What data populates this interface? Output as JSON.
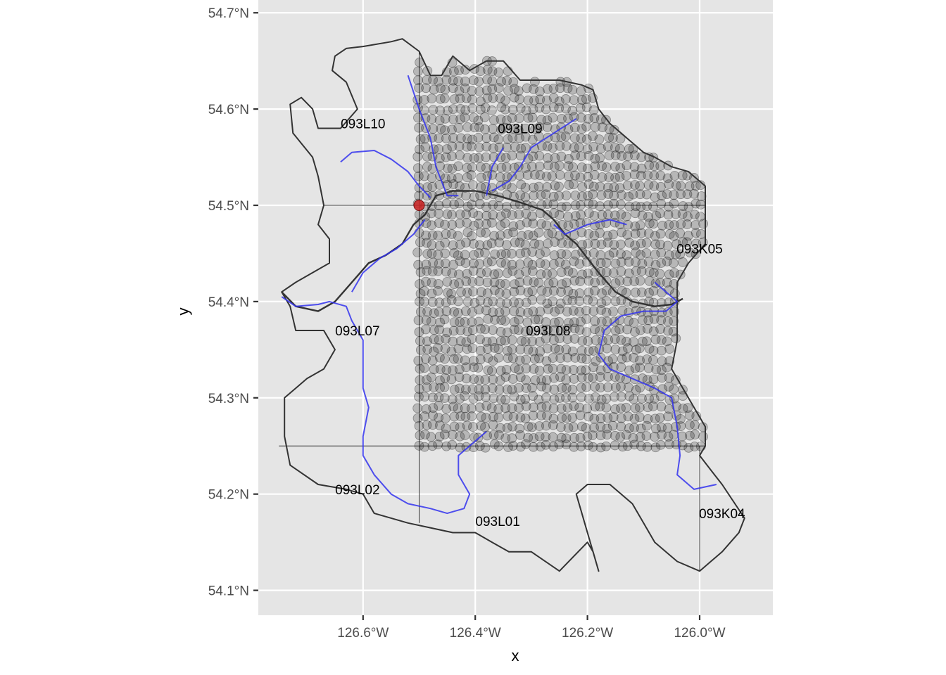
{
  "plot": {
    "xlabel": "x",
    "ylabel": "y",
    "xlim": [
      -126.78,
      -125.87
    ],
    "ylim": [
      54.075,
      54.71
    ],
    "x_ticks": [
      {
        "value": -126.6,
        "label": "126.6°W"
      },
      {
        "value": -126.4,
        "label": "126.4°W"
      },
      {
        "value": -126.2,
        "label": "126.2°W"
      },
      {
        "value": -126.0,
        "label": "126.0°W"
      }
    ],
    "y_ticks": [
      {
        "value": 54.1,
        "label": "54.1°N"
      },
      {
        "value": 54.2,
        "label": "54.2°N"
      },
      {
        "value": 54.3,
        "label": "54.3°N"
      },
      {
        "value": 54.4,
        "label": "54.4°N"
      },
      {
        "value": 54.5,
        "label": "54.5°N"
      },
      {
        "value": 54.6,
        "label": "54.6°N"
      },
      {
        "value": 54.7,
        "label": "54.7°N"
      }
    ],
    "grid": true,
    "colors": {
      "panel_bg": "#e5e5e5",
      "grid": "#ffffff",
      "boundary": "#333333",
      "tile_lines": "#333333",
      "river": "#3333ee",
      "points": "#000000",
      "marker": "#cc2222"
    }
  },
  "map_labels": [
    {
      "text": "093L10",
      "lon": -126.6,
      "lat": 54.585
    },
    {
      "text": "093L09",
      "lon": -126.32,
      "lat": 54.58
    },
    {
      "text": "093K05",
      "lon": -126.0,
      "lat": 54.455
    },
    {
      "text": "093L07",
      "lon": -126.61,
      "lat": 54.37
    },
    {
      "text": "093L08",
      "lon": -126.27,
      "lat": 54.37
    },
    {
      "text": "093L02",
      "lon": -126.61,
      "lat": 54.205
    },
    {
      "text": "093L01",
      "lon": -126.36,
      "lat": 54.172
    },
    {
      "text": "093K04",
      "lon": -125.96,
      "lat": 54.18
    }
  ],
  "tile_grid": {
    "horizontal": [
      {
        "lat": 54.5,
        "lon_from": -126.67,
        "lon_to": -125.99
      },
      {
        "lat": 54.25,
        "lon_from": -126.75,
        "lon_to": -125.99
      }
    ],
    "vertical": [
      {
        "lon": -126.5,
        "lat_from": 54.17,
        "lat_to": 54.66
      },
      {
        "lon": -126.0,
        "lat_from": 54.12,
        "lat_to": 54.25
      }
    ]
  },
  "marker": {
    "lon": -126.5,
    "lat": 54.5
  },
  "points_region": {
    "lon_range": [
      -126.5,
      -125.99
    ],
    "lat_range": [
      54.25,
      54.655
    ],
    "lon_step": 0.012,
    "lat_step": 0.01
  },
  "watershed_boundary": [
    [
      -126.5,
      54.66
    ],
    [
      -126.53,
      54.673
    ],
    [
      -126.55,
      54.67
    ],
    [
      -126.6,
      54.665
    ],
    [
      -126.63,
      54.663
    ],
    [
      -126.65,
      54.655
    ],
    [
      -126.655,
      54.64
    ],
    [
      -126.63,
      54.628
    ],
    [
      -126.61,
      54.6
    ],
    [
      -126.64,
      54.58
    ],
    [
      -126.68,
      54.58
    ],
    [
      -126.69,
      54.6
    ],
    [
      -126.71,
      54.612
    ],
    [
      -126.73,
      54.605
    ],
    [
      -126.725,
      54.575
    ],
    [
      -126.69,
      54.55
    ],
    [
      -126.68,
      54.53
    ],
    [
      -126.67,
      54.5
    ],
    [
      -126.68,
      54.48
    ],
    [
      -126.66,
      54.465
    ],
    [
      -126.66,
      54.44
    ],
    [
      -126.72,
      54.42
    ],
    [
      -126.745,
      54.41
    ],
    [
      -126.73,
      54.395
    ],
    [
      -126.72,
      54.37
    ],
    [
      -126.67,
      54.37
    ],
    [
      -126.65,
      54.35
    ],
    [
      -126.67,
      54.33
    ],
    [
      -126.7,
      54.32
    ],
    [
      -126.72,
      54.31
    ],
    [
      -126.74,
      54.3
    ],
    [
      -126.74,
      54.26
    ],
    [
      -126.73,
      54.23
    ],
    [
      -126.68,
      54.21
    ],
    [
      -126.63,
      54.205
    ],
    [
      -126.6,
      54.2
    ],
    [
      -126.58,
      54.18
    ],
    [
      -126.55,
      54.175
    ],
    [
      -126.52,
      54.17
    ],
    [
      -126.48,
      54.165
    ],
    [
      -126.44,
      54.16
    ],
    [
      -126.4,
      54.16
    ],
    [
      -126.37,
      54.15
    ],
    [
      -126.34,
      54.14
    ],
    [
      -126.3,
      54.14
    ],
    [
      -126.25,
      54.12
    ],
    [
      -126.2,
      54.15
    ],
    [
      -126.19,
      54.14
    ],
    [
      -126.18,
      54.12
    ],
    [
      -126.22,
      54.2
    ],
    [
      -126.2,
      54.21
    ],
    [
      -126.16,
      54.21
    ],
    [
      -126.12,
      54.19
    ],
    [
      -126.1,
      54.17
    ],
    [
      -126.08,
      54.15
    ],
    [
      -126.04,
      54.13
    ],
    [
      -126.0,
      54.12
    ],
    [
      -125.98,
      54.13
    ],
    [
      -125.96,
      54.14
    ],
    [
      -125.93,
      54.16
    ],
    [
      -125.92,
      54.175
    ],
    [
      -125.96,
      54.21
    ],
    [
      -125.98,
      54.225
    ],
    [
      -126.0,
      54.24
    ],
    [
      -125.99,
      54.25
    ],
    [
      -125.99,
      54.27
    ],
    [
      -126.01,
      54.29
    ],
    [
      -126.03,
      54.31
    ],
    [
      -126.05,
      54.33
    ],
    [
      -126.04,
      54.36
    ],
    [
      -126.04,
      54.39
    ],
    [
      -126.04,
      54.42
    ],
    [
      -126.02,
      54.44
    ],
    [
      -125.99,
      54.46
    ],
    [
      -125.99,
      54.5
    ],
    [
      -125.99,
      54.52
    ],
    [
      -126.02,
      54.535
    ],
    [
      -126.05,
      54.54
    ],
    [
      -126.08,
      54.55
    ],
    [
      -126.1,
      54.555
    ],
    [
      -126.13,
      54.57
    ],
    [
      -126.16,
      54.585
    ],
    [
      -126.18,
      54.6
    ],
    [
      -126.19,
      54.62
    ],
    [
      -126.21,
      54.625
    ],
    [
      -126.25,
      54.63
    ],
    [
      -126.28,
      54.63
    ],
    [
      -126.32,
      54.63
    ],
    [
      -126.35,
      54.65
    ],
    [
      -126.38,
      54.65
    ],
    [
      -126.41,
      54.64
    ],
    [
      -126.44,
      54.655
    ],
    [
      -126.46,
      54.635
    ],
    [
      -126.48,
      54.635
    ],
    [
      -126.5,
      54.66
    ]
  ],
  "inner_boundary": [
    [
      -126.745,
      54.41
    ],
    [
      -126.72,
      54.395
    ],
    [
      -126.68,
      54.39
    ],
    [
      -126.65,
      54.4
    ],
    [
      -126.62,
      54.42
    ],
    [
      -126.59,
      54.44
    ],
    [
      -126.56,
      54.448
    ],
    [
      -126.53,
      54.46
    ],
    [
      -126.51,
      54.48
    ],
    [
      -126.49,
      54.49
    ],
    [
      -126.47,
      54.51
    ],
    [
      -126.44,
      54.515
    ],
    [
      -126.4,
      54.515
    ],
    [
      -126.36,
      54.51
    ],
    [
      -126.32,
      54.503
    ],
    [
      -126.28,
      54.495
    ],
    [
      -126.26,
      54.485
    ],
    [
      -126.24,
      54.47
    ],
    [
      -126.22,
      54.46
    ],
    [
      -126.2,
      54.445
    ],
    [
      -126.18,
      54.43
    ],
    [
      -126.15,
      54.41
    ],
    [
      -126.12,
      54.4
    ],
    [
      -126.08,
      54.395
    ],
    [
      -126.05,
      54.397
    ],
    [
      -126.03,
      54.403
    ]
  ],
  "rivers": [
    [
      [
        -126.52,
        54.635
      ],
      [
        -126.5,
        54.6
      ],
      [
        -126.48,
        54.57
      ],
      [
        -126.47,
        54.54
      ],
      [
        -126.45,
        54.51
      ],
      [
        -126.43,
        54.51
      ]
    ],
    [
      [
        -126.64,
        54.545
      ],
      [
        -126.62,
        54.555
      ],
      [
        -126.58,
        54.557
      ],
      [
        -126.55,
        54.548
      ],
      [
        -126.52,
        54.535
      ],
      [
        -126.5,
        54.52
      ],
      [
        -126.48,
        54.508
      ]
    ],
    [
      [
        -126.22,
        54.59
      ],
      [
        -126.26,
        54.575
      ],
      [
        -126.3,
        54.56
      ],
      [
        -126.32,
        54.54
      ],
      [
        -126.34,
        54.525
      ],
      [
        -126.37,
        54.515
      ]
    ],
    [
      [
        -126.35,
        54.56
      ],
      [
        -126.37,
        54.54
      ],
      [
        -126.38,
        54.51
      ]
    ],
    [
      [
        -126.26,
        54.48
      ],
      [
        -126.24,
        54.47
      ],
      [
        -126.2,
        54.48
      ],
      [
        -126.16,
        54.485
      ],
      [
        -126.13,
        54.48
      ]
    ],
    [
      [
        -126.08,
        54.42
      ],
      [
        -126.06,
        54.41
      ],
      [
        -126.04,
        54.4
      ],
      [
        -126.06,
        54.39
      ],
      [
        -126.1,
        54.39
      ],
      [
        -126.14,
        54.385
      ],
      [
        -126.17,
        54.37
      ],
      [
        -126.18,
        54.345
      ],
      [
        -126.16,
        54.33
      ],
      [
        -126.12,
        54.32
      ],
      [
        -126.08,
        54.31
      ],
      [
        -126.05,
        54.3
      ],
      [
        -126.04,
        54.27
      ],
      [
        -126.035,
        54.24
      ],
      [
        -126.04,
        54.22
      ],
      [
        -126.01,
        54.205
      ],
      [
        -125.97,
        54.21
      ]
    ],
    [
      [
        -126.745,
        54.405
      ],
      [
        -126.72,
        54.395
      ],
      [
        -126.68,
        54.397
      ],
      [
        -126.66,
        54.4
      ],
      [
        -126.63,
        54.395
      ],
      [
        -126.62,
        54.38
      ],
      [
        -126.6,
        54.36
      ],
      [
        -126.6,
        54.34
      ],
      [
        -126.6,
        54.31
      ],
      [
        -126.59,
        54.29
      ],
      [
        -126.6,
        54.26
      ],
      [
        -126.6,
        54.24
      ],
      [
        -126.58,
        54.22
      ],
      [
        -126.55,
        54.2
      ],
      [
        -126.52,
        54.19
      ],
      [
        -126.48,
        54.185
      ],
      [
        -126.45,
        54.18
      ],
      [
        -126.42,
        54.185
      ],
      [
        -126.41,
        54.2
      ],
      [
        -126.43,
        54.22
      ],
      [
        -126.43,
        54.24
      ],
      [
        -126.41,
        54.25
      ],
      [
        -126.38,
        54.265
      ]
    ],
    [
      [
        -126.62,
        54.41
      ],
      [
        -126.6,
        54.43
      ],
      [
        -126.57,
        54.445
      ],
      [
        -126.54,
        54.455
      ],
      [
        -126.51,
        54.47
      ],
      [
        -126.49,
        54.485
      ]
    ]
  ]
}
